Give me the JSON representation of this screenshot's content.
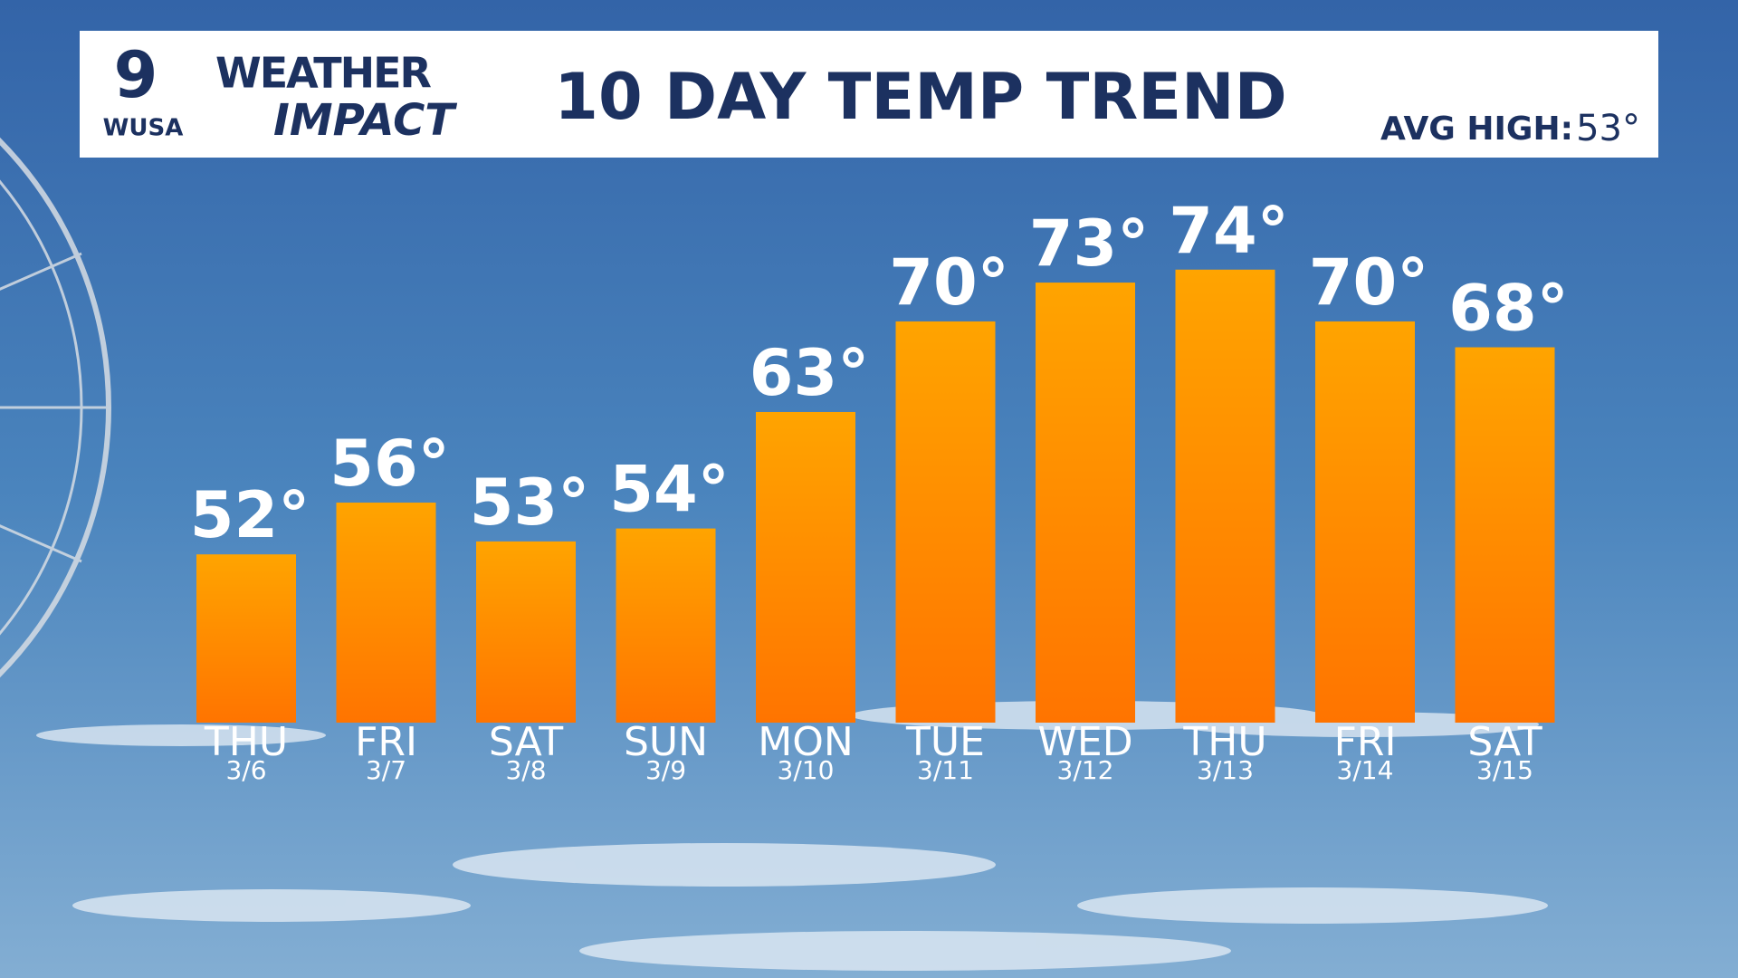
{
  "header": {
    "logo_number": "9",
    "logo_station": "WUSA",
    "brand_top": "WEATHER",
    "brand_bottom": "IMPACT",
    "title": "10 DAY TEMP TREND",
    "avg_label": "AVG HIGH:",
    "avg_value": "53°"
  },
  "chart_data": {
    "type": "bar",
    "categories": [
      "THU",
      "FRI",
      "SAT",
      "SUN",
      "MON",
      "TUE",
      "WED",
      "THU",
      "FRI",
      "SAT"
    ],
    "dates": [
      "3/6",
      "3/7",
      "3/8",
      "3/9",
      "3/10",
      "3/11",
      "3/12",
      "3/13",
      "3/14",
      "3/15"
    ],
    "values": [
      52,
      56,
      53,
      54,
      63,
      70,
      73,
      74,
      70,
      68
    ],
    "value_labels": [
      "52°",
      "56°",
      "53°",
      "54°",
      "63°",
      "70°",
      "73°",
      "74°",
      "70°",
      "68°"
    ],
    "color": "#ff8a00",
    "ylim": [
      39,
      80
    ]
  }
}
